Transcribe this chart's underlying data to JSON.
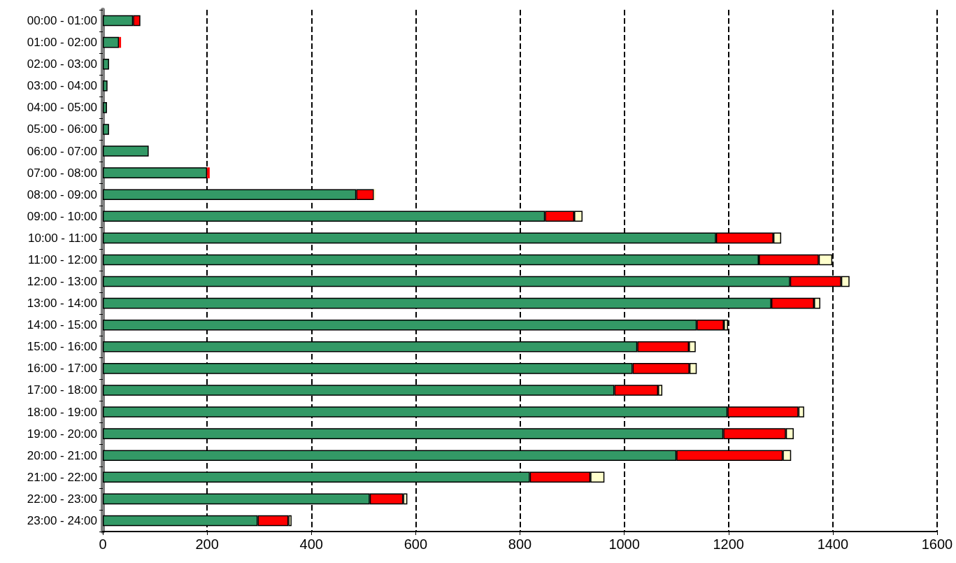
{
  "chart_data": {
    "type": "bar",
    "orientation": "horizontal",
    "stacked": true,
    "categories": [
      "00:00 - 01:00",
      "01:00 - 02:00",
      "02:00 - 03:00",
      "03:00 - 04:00",
      "04:00 - 05:00",
      "05:00 - 06:00",
      "06:00 - 07:00",
      "07:00 - 08:00",
      "08:00 - 09:00",
      "09:00 - 10:00",
      "10:00 - 11:00",
      "11:00 - 12:00",
      "12:00 - 13:00",
      "13:00 - 14:00",
      "14:00 - 15:00",
      "15:00 - 16:00",
      "16:00 - 17:00",
      "17:00 - 18:00",
      "18:00 - 19:00",
      "19:00 - 20:00",
      "20:00 - 21:00",
      "21:00 - 22:00",
      "22:00 - 23:00",
      "23:00 - 24:00"
    ],
    "series": [
      {
        "color": "#339966",
        "values": [
          58,
          31,
          12,
          9,
          8,
          12,
          88,
          200,
          486,
          848,
          1176,
          1258,
          1318,
          1282,
          1139,
          1025,
          1016,
          981,
          1198,
          1190,
          1100,
          819,
          512,
          297
        ]
      },
      {
        "color": "#ff0000",
        "values": [
          14,
          4,
          null,
          null,
          null,
          null,
          null,
          5,
          34,
          56,
          110,
          115,
          98,
          82,
          52,
          99,
          109,
          84,
          136,
          120,
          204,
          116,
          64,
          59
        ]
      },
      {
        "color": "#ffffcc",
        "values": [
          null,
          null,
          null,
          null,
          null,
          null,
          null,
          null,
          3,
          16,
          15,
          26,
          16,
          12,
          8,
          13,
          14,
          8,
          11,
          15,
          16,
          27,
          8,
          6
        ]
      }
    ],
    "xlim": [
      0,
      1600
    ],
    "xticks": [
      0,
      200,
      400,
      600,
      800,
      1000,
      1200,
      1400,
      1600
    ],
    "grid": "x"
  }
}
